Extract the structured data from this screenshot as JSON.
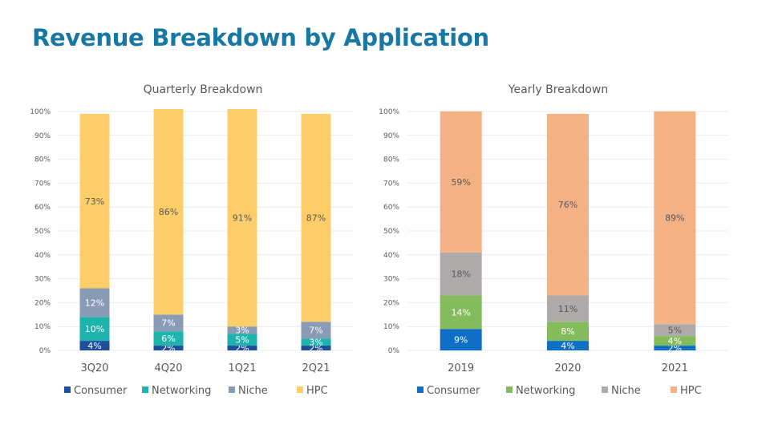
{
  "page": {
    "title": "Revenue Breakdown by Application"
  },
  "chart_data": [
    {
      "type": "bar",
      "stacked": true,
      "title": "Quarterly Breakdown",
      "xlabel": "",
      "ylabel": "",
      "ylim": [
        0,
        100
      ],
      "yticks": [
        "0%",
        "10%",
        "20%",
        "30%",
        "40%",
        "50%",
        "60%",
        "70%",
        "80%",
        "90%",
        "100%"
      ],
      "grid": true,
      "legend": "bottom",
      "categories": [
        "3Q20",
        "4Q20",
        "1Q21",
        "2Q21"
      ],
      "series": [
        {
          "name": "Consumer",
          "color": "#1f4e9c",
          "label_color": "#ffffff",
          "values": [
            4,
            2,
            2,
            2
          ]
        },
        {
          "name": "Networking",
          "color": "#1fb3ad",
          "label_color": "#ffffff",
          "values": [
            10,
            6,
            5,
            3
          ]
        },
        {
          "name": "Niche",
          "color": "#8a9bb5",
          "label_color": "#ffffff",
          "values": [
            12,
            7,
            3,
            7
          ]
        },
        {
          "name": "HPC",
          "color": "#fdcd69",
          "label_color": "#595959",
          "values": [
            73,
            86,
            91,
            87
          ]
        }
      ]
    },
    {
      "type": "bar",
      "stacked": true,
      "title": "Yearly Breakdown",
      "xlabel": "",
      "ylabel": "",
      "ylim": [
        0,
        100
      ],
      "yticks": [
        "0%",
        "10%",
        "20%",
        "30%",
        "40%",
        "50%",
        "60%",
        "70%",
        "80%",
        "90%",
        "100%"
      ],
      "grid": true,
      "legend": "bottom",
      "categories": [
        "2019",
        "2020",
        "2021"
      ],
      "series": [
        {
          "name": "Consumer",
          "color": "#0f6fc6",
          "label_color": "#ffffff",
          "values": [
            9,
            4,
            2
          ]
        },
        {
          "name": "Networking",
          "color": "#84bc5b",
          "label_color": "#ffffff",
          "values": [
            14,
            8,
            4
          ]
        },
        {
          "name": "Niche",
          "color": "#aeaaaa",
          "label_color": "#595959",
          "values": [
            18,
            11,
            5
          ]
        },
        {
          "name": "HPC",
          "color": "#f4b183",
          "label_color": "#595959",
          "values": [
            59,
            76,
            89
          ]
        }
      ]
    }
  ]
}
